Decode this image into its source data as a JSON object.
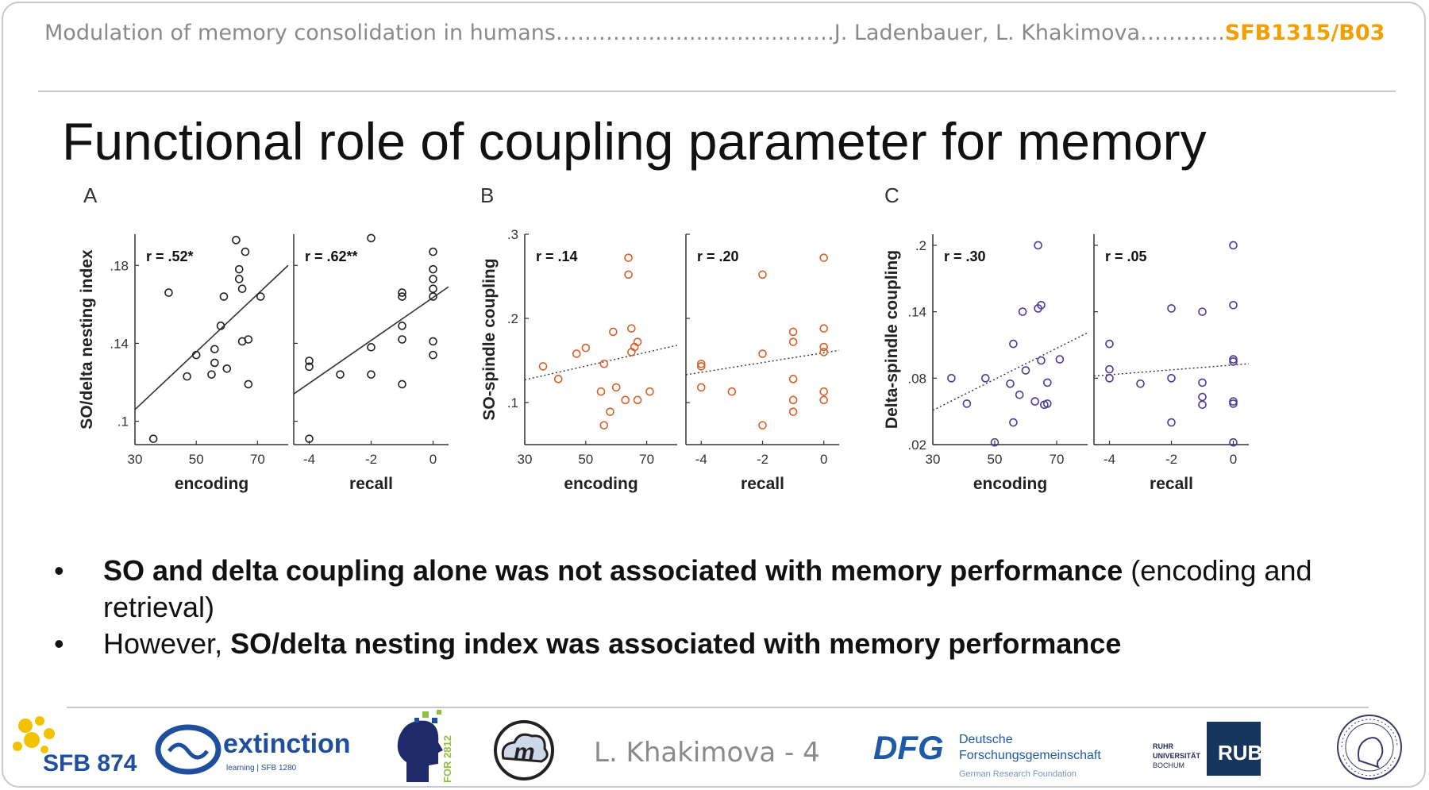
{
  "header": {
    "text": "Modulation of memory consolidation in humans………….....................…….J. Ladenbauer, L. Khakimova………...",
    "tag": "SFB1315/B03"
  },
  "title": "Functional role of coupling parameter for memory",
  "chart_data": [
    {
      "panel": "A",
      "type": "scatter",
      "ylabel": "SO/delta nesting index",
      "yticks": [
        ".1",
        ".14",
        ".18"
      ],
      "ylim": [
        0.088,
        0.196
      ],
      "subplots": [
        {
          "xlabel": "encoding",
          "xticks": [
            "30",
            "50",
            "70"
          ],
          "xlim": [
            30,
            80
          ],
          "r_label": "r = .52*",
          "points": [
            [
              36,
              0.091
            ],
            [
              41,
              0.166
            ],
            [
              47,
              0.123
            ],
            [
              50,
              0.134
            ],
            [
              55,
              0.124
            ],
            [
              56,
              0.13
            ],
            [
              56,
              0.137
            ],
            [
              58,
              0.149
            ],
            [
              59,
              0.164
            ],
            [
              60,
              0.127
            ],
            [
              63,
              0.193
            ],
            [
              64,
              0.178
            ],
            [
              64,
              0.173
            ],
            [
              65,
              0.168
            ],
            [
              65,
              0.141
            ],
            [
              66,
              0.187
            ],
            [
              67,
              0.142
            ],
            [
              67,
              0.119
            ],
            [
              71,
              0.164
            ]
          ],
          "fit": {
            "style": "solid",
            "y_start": 0.106,
            "y_end": 0.18
          }
        },
        {
          "xlabel": "recall",
          "xticks": [
            "-4",
            "-2",
            "0"
          ],
          "xlim": [
            -4.5,
            0.5
          ],
          "r_label": "r = .62**",
          "points": [
            [
              -4,
              0.091
            ],
            [
              -4,
              0.128
            ],
            [
              -4,
              0.131
            ],
            [
              -3,
              0.124
            ],
            [
              -2,
              0.124
            ],
            [
              -2,
              0.138
            ],
            [
              -2,
              0.194
            ],
            [
              -1,
              0.119
            ],
            [
              -1,
              0.142
            ],
            [
              -1,
              0.149
            ],
            [
              -1,
              0.164
            ],
            [
              -1,
              0.166
            ],
            [
              0,
              0.134
            ],
            [
              0,
              0.141
            ],
            [
              0,
              0.164
            ],
            [
              0,
              0.168
            ],
            [
              0,
              0.173
            ],
            [
              0,
              0.178
            ],
            [
              0,
              0.187
            ]
          ],
          "fit": {
            "style": "solid",
            "y_start": 0.114,
            "y_end": 0.169
          }
        }
      ]
    },
    {
      "panel": "B",
      "type": "scatter",
      "ylabel": "SO-spindle coupling",
      "yticks": [
        ".1",
        ".2",
        ".3"
      ],
      "ylim": [
        0.05,
        0.3
      ],
      "subplots": [
        {
          "xlabel": "encoding",
          "xticks": [
            "30",
            "50",
            "70"
          ],
          "xlim": [
            30,
            80
          ],
          "r_label": "r = .14",
          "points": [
            [
              36,
              0.143
            ],
            [
              41,
              0.128
            ],
            [
              47,
              0.158
            ],
            [
              50,
              0.165
            ],
            [
              55,
              0.113
            ],
            [
              56,
              0.073
            ],
            [
              56,
              0.146
            ],
            [
              58,
              0.089
            ],
            [
              59,
              0.184
            ],
            [
              60,
              0.118
            ],
            [
              63,
              0.103
            ],
            [
              64,
              0.252
            ],
            [
              64,
              0.272
            ],
            [
              65,
              0.188
            ],
            [
              65,
              0.16
            ],
            [
              66,
              0.166
            ],
            [
              67,
              0.172
            ],
            [
              67,
              0.103
            ],
            [
              71,
              0.113
            ]
          ],
          "fit": {
            "style": "dotted",
            "y_start": 0.127,
            "y_end": 0.168
          }
        },
        {
          "xlabel": "recall",
          "xticks": [
            "-4",
            "-2",
            "0"
          ],
          "xlim": [
            -4.5,
            0.5
          ],
          "r_label": "r = .20",
          "points": [
            [
              -4,
              0.118
            ],
            [
              -4,
              0.143
            ],
            [
              -4,
              0.146
            ],
            [
              -3,
              0.113
            ],
            [
              -2,
              0.073
            ],
            [
              -2,
              0.158
            ],
            [
              -2,
              0.252
            ],
            [
              -1,
              0.089
            ],
            [
              -1,
              0.103
            ],
            [
              -1,
              0.128
            ],
            [
              -1,
              0.172
            ],
            [
              -1,
              0.184
            ],
            [
              0,
              0.103
            ],
            [
              0,
              0.113
            ],
            [
              0,
              0.16
            ],
            [
              0,
              0.166
            ],
            [
              0,
              0.188
            ],
            [
              0,
              0.272
            ]
          ],
          "fit": {
            "style": "dotted",
            "y_start": 0.133,
            "y_end": 0.162
          }
        }
      ]
    },
    {
      "panel": "C",
      "type": "scatter",
      "ylabel": "Delta-spindle coupling",
      "yticks": [
        ".02",
        ".08",
        ".14",
        ".2"
      ],
      "ylim": [
        0.02,
        0.21
      ],
      "subplots": [
        {
          "xlabel": "encoding",
          "xticks": [
            "30",
            "50",
            "70"
          ],
          "xlim": [
            30,
            80
          ],
          "r_label": "r = .30",
          "points": [
            [
              36,
              0.08
            ],
            [
              41,
              0.057
            ],
            [
              47,
              0.08
            ],
            [
              50,
              0.022
            ],
            [
              55,
              0.075
            ],
            [
              56,
              0.04
            ],
            [
              56,
              0.111
            ],
            [
              58,
              0.065
            ],
            [
              59,
              0.14
            ],
            [
              60,
              0.087
            ],
            [
              63,
              0.059
            ],
            [
              64,
              0.143
            ],
            [
              64,
              0.2
            ],
            [
              65,
              0.096
            ],
            [
              65,
              0.146
            ],
            [
              66,
              0.056
            ],
            [
              67,
              0.076
            ],
            [
              67,
              0.057
            ],
            [
              71,
              0.097
            ]
          ],
          "fit": {
            "style": "dotted",
            "y_start": 0.051,
            "y_end": 0.121
          }
        },
        {
          "xlabel": "recall",
          "xticks": [
            "-4",
            "-2",
            "0"
          ],
          "xlim": [
            -4.5,
            0.5
          ],
          "r_label": "r = .05",
          "points": [
            [
              -4,
              0.08
            ],
            [
              -4,
              0.088
            ],
            [
              -4,
              0.111
            ],
            [
              -3,
              0.075
            ],
            [
              -2,
              0.04
            ],
            [
              -2,
              0.08
            ],
            [
              -2,
              0.143
            ],
            [
              -1,
              0.056
            ],
            [
              -1,
              0.063
            ],
            [
              -1,
              0.076
            ],
            [
              -1,
              0.14
            ],
            [
              0,
              0.022
            ],
            [
              0,
              0.057
            ],
            [
              0,
              0.059
            ],
            [
              0,
              0.095
            ],
            [
              0,
              0.097
            ],
            [
              0,
              0.146
            ],
            [
              0,
              0.2
            ]
          ],
          "fit": {
            "style": "dotted",
            "y_start": 0.082,
            "y_end": 0.093
          }
        }
      ]
    }
  ],
  "colors": {
    "panelA": "#222222",
    "panelB": "#d9602a",
    "panelC": "#4a3a9a",
    "accent": "#f0a000"
  },
  "bullets": [
    {
      "bold": "SO and delta coupling alone was not associated with memory performance",
      "normal": " (encoding and retrieval)"
    },
    {
      "normal": "However, ",
      "bold": "SO/delta nesting index was associated with memory performance"
    }
  ],
  "footer": {
    "presenter": "L. Khakimova - 4",
    "sfb874": "SFB 874",
    "extinction_word": "extinction",
    "extinction_sub": "learning | SFB 1280",
    "for2812": "FOR 2812",
    "dfg_logo": "DFG",
    "dfg_name_1": "Deutsche",
    "dfg_name_2": "Forschungsgemeinschaft",
    "dfg_sub": "German Research Foundation",
    "rub_text_1": "RUHR",
    "rub_text_2": "UNIVERSITÄT",
    "rub_text_3": "BOCHUM",
    "rub_logo": "RUB",
    "logo_m": "m"
  }
}
